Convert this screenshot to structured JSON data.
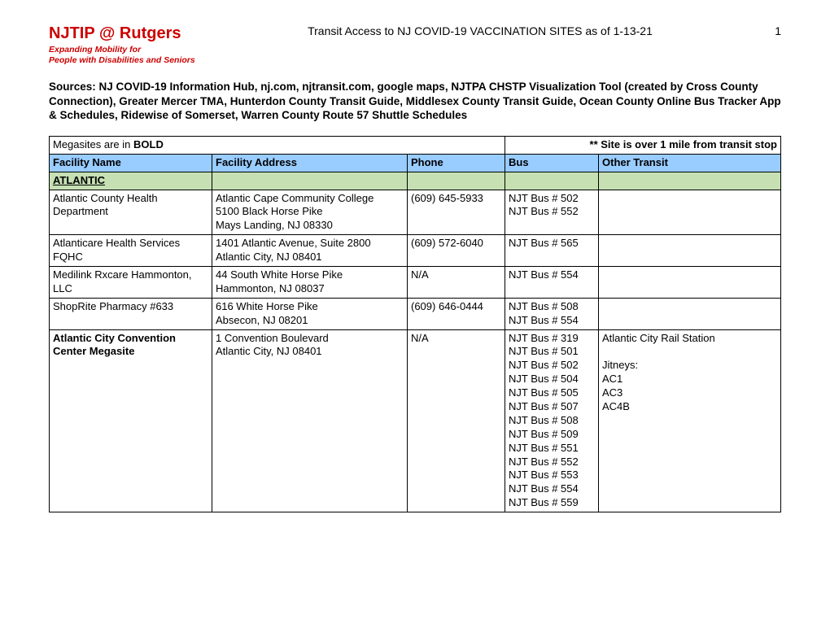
{
  "header": {
    "logo_title": "NJTIP @ Rutgers",
    "logo_subtitle_line1": "Expanding Mobility for",
    "logo_subtitle_line2": "People with Disabilities and Seniors",
    "doc_title": "Transit Access to NJ COVID-19 VACCINATION SITES  as of 1-13-21",
    "page_number": "1"
  },
  "sources": "Sources: NJ COVID-19 Information Hub, nj.com, njtransit.com, google maps, NJTPA CHSTP Visualization Tool (created by Cross County Connection), Greater Mercer TMA, Hunterdon County Transit Guide, Middlesex County Transit Guide, Ocean County Online Bus Tracker App & Schedules, Ridewise of Somerset, Warren County Route 57 Shuttle Schedules",
  "legend": {
    "left_prefix": "Megasites are in ",
    "left_bold": "BOLD",
    "right": "** Site is over 1 mile from transit stop"
  },
  "columns": {
    "name": "Facility Name",
    "address": "Facility Address",
    "phone": "Phone",
    "bus": "Bus",
    "other": "Other Transit"
  },
  "county": "ATLANTIC",
  "rows": [
    {
      "name": "Atlantic County Health Department",
      "bold": false,
      "address": "Atlantic Cape Community College\n5100 Black Horse Pike\nMays Landing, NJ 08330",
      "phone": "(609) 645-5933",
      "bus": "NJT Bus # 502\nNJT Bus # 552",
      "other": ""
    },
    {
      "name": "Atlanticare Health Services FQHC",
      "bold": false,
      "address": "1401 Atlantic Avenue, Suite 2800\nAtlantic City, NJ 08401",
      "phone": "(609) 572-6040",
      "bus": "NJT Bus # 565",
      "other": ""
    },
    {
      "name": "Medilink Rxcare Hammonton, LLC",
      "bold": false,
      "address": "44 South White Horse Pike\nHammonton, NJ 08037",
      "phone": "N/A",
      "bus": "NJT Bus # 554",
      "other": ""
    },
    {
      "name": "ShopRite Pharmacy #633",
      "bold": false,
      "address": "616 White Horse Pike\nAbsecon, NJ 08201",
      "phone": "(609) 646-0444",
      "bus": "NJT Bus # 508\nNJT Bus # 554",
      "other": ""
    },
    {
      "name": "Atlantic City Convention Center Megasite",
      "bold": true,
      "address": "1 Convention Boulevard\n Atlantic City, NJ 08401",
      "phone": "N/A",
      "bus": "NJT Bus # 319\nNJT Bus # 501\nNJT Bus # 502\nNJT Bus # 504\nNJT Bus # 505\nNJT Bus # 507\nNJT Bus # 508\nNJT Bus # 509\nNJT Bus # 551\nNJT Bus # 552\nNJT Bus # 553\nNJT Bus # 554\nNJT Bus # 559",
      "other": "Atlantic City Rail Station\n\nJitneys:\nAC1\nAC3\nAC4B"
    }
  ]
}
